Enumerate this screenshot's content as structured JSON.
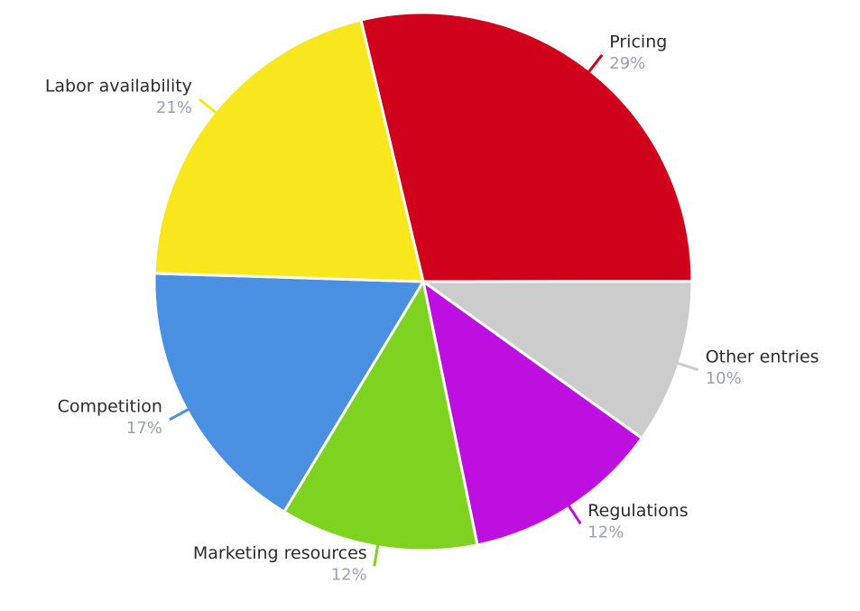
{
  "chart_data": {
    "type": "pie",
    "categories": [
      "Pricing",
      "Other entries",
      "Regulations",
      "Marketing resources",
      "Competition",
      "Labor availability"
    ],
    "values": [
      29,
      10,
      12,
      12,
      17,
      21
    ],
    "value_labels": [
      "29%",
      "10%",
      "12%",
      "12%",
      "17%",
      "21%"
    ],
    "colors": [
      "#d0021b",
      "#cccccc",
      "#bd10e0",
      "#7ed321",
      "#4a90e2",
      "#f8e71c"
    ]
  }
}
